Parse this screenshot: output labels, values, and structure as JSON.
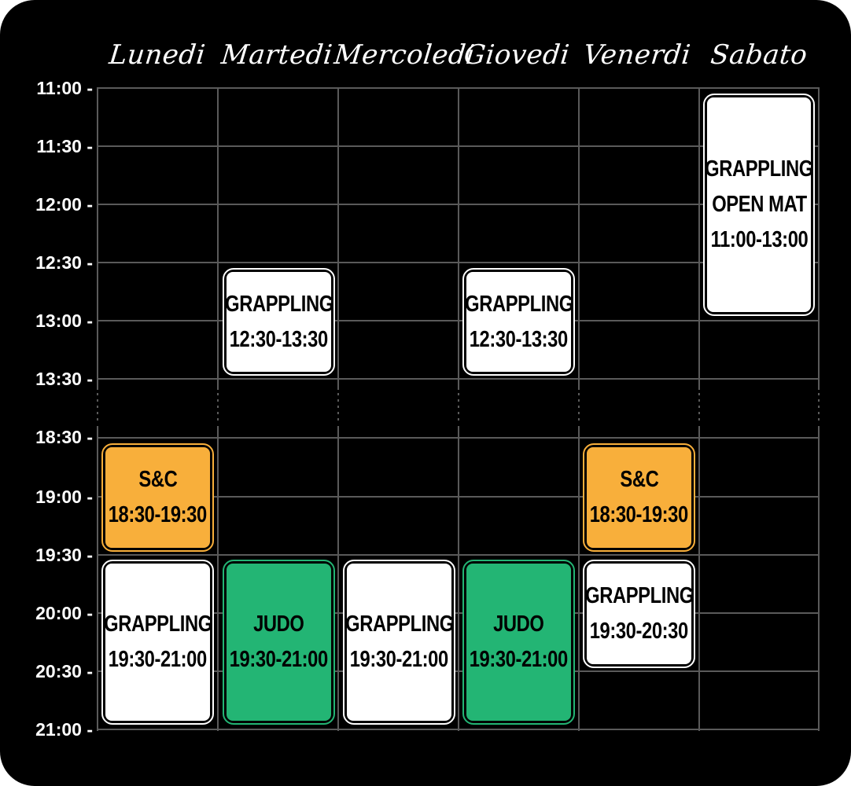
{
  "days": [
    "Lunedi",
    "Martedi",
    "Mercoledi",
    "Giovedi",
    "Venerdi",
    "Sabato"
  ],
  "times": [
    "11:00 -",
    "11:30 -",
    "12:00 -",
    "12:30 -",
    "13:00 -",
    "13:30 -",
    "18:30 -",
    "19:00 -",
    "19:30 -",
    "20:00 -",
    "20:30 -",
    "21:00 -"
  ],
  "colors": {
    "background": "#000000",
    "grid": "#5a5a5a",
    "white_class": "#ffffff",
    "snc_class": "#f8af3b",
    "judo_class": "#23b574"
  },
  "classes": [
    {
      "id": "lun-snc",
      "lines": [
        "S&C",
        "18:30-19:30"
      ],
      "color": "#f8af3b"
    },
    {
      "id": "lun-grappling",
      "lines": [
        "GRAPPLING",
        "19:30-21:00"
      ],
      "color": "#ffffff"
    },
    {
      "id": "mar-grappling",
      "lines": [
        "GRAPPLING",
        "12:30-13:30"
      ],
      "color": "#ffffff"
    },
    {
      "id": "mar-judo",
      "lines": [
        "JUDO",
        "19:30-21:00"
      ],
      "color": "#23b574"
    },
    {
      "id": "mer-grappling",
      "lines": [
        "GRAPPLING",
        "19:30-21:00"
      ],
      "color": "#ffffff"
    },
    {
      "id": "gio-grappling-noon",
      "lines": [
        "GRAPPLING",
        "12:30-13:30"
      ],
      "color": "#ffffff"
    },
    {
      "id": "gio-judo",
      "lines": [
        "JUDO",
        "19:30-21:00"
      ],
      "color": "#23b574"
    },
    {
      "id": "ven-snc",
      "lines": [
        "S&C",
        "18:30-19:30"
      ],
      "color": "#f8af3b"
    },
    {
      "id": "ven-grappling",
      "lines": [
        "GRAPPLING",
        "19:30-20:30"
      ],
      "color": "#ffffff"
    },
    {
      "id": "sab-open-mat",
      "lines": [
        "GRAPPLING",
        "OPEN MAT",
        "11:00-13:00"
      ],
      "color": "#ffffff"
    }
  ]
}
